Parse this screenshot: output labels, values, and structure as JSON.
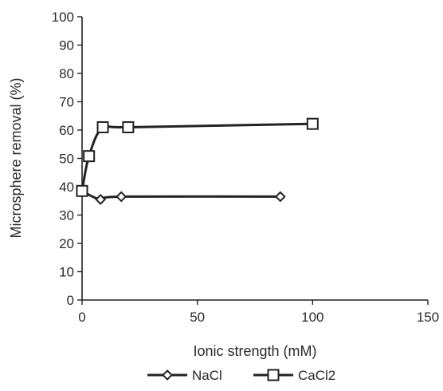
{
  "chart_data": {
    "type": "line",
    "xlabel": "Ionic strength (mM)",
    "ylabel": "Microsphere removal (%)",
    "xlim": [
      0,
      150
    ],
    "ylim": [
      0,
      100
    ],
    "x_ticks": [
      "0",
      "50",
      "100",
      "150"
    ],
    "y_ticks": [
      "0",
      "10",
      "20",
      "30",
      "40",
      "50",
      "60",
      "70",
      "80",
      "90",
      "100"
    ],
    "grid": false,
    "legend_position": "bottom",
    "series": [
      {
        "name": "NaCl",
        "marker": "diamond",
        "color": "#222222",
        "x": [
          0,
          8,
          17,
          86
        ],
        "y": [
          38.5,
          35.5,
          36.5,
          36.5
        ]
      },
      {
        "name": "CaCl2",
        "marker": "square",
        "color": "#222222",
        "x": [
          0,
          3,
          9,
          20,
          100
        ],
        "y": [
          38.5,
          50.8,
          61,
          61,
          62.2
        ]
      }
    ]
  }
}
